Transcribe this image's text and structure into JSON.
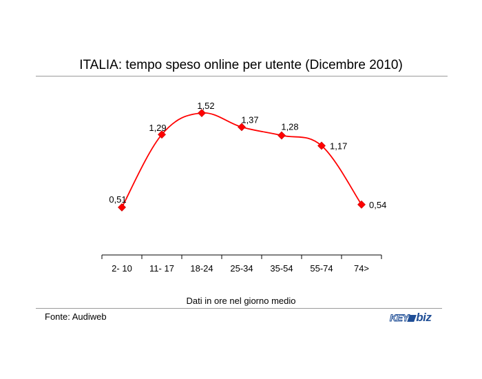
{
  "chart_data": {
    "type": "line",
    "title": "ITALIA: tempo speso online per utente (Dicembre 2010)",
    "xlabel": "Dati in ore nel giorno medio",
    "ylabel": "",
    "categories": [
      "2- 10",
      "11- 17",
      "18-24",
      "25-34",
      "35-54",
      "55-74",
      "74>"
    ],
    "series": [
      {
        "values": [
          0.51,
          1.29,
          1.52,
          1.37,
          1.28,
          1.17,
          0.54
        ],
        "labels": [
          "0,51",
          "1,29",
          "1,52",
          "1,37",
          "1,28",
          "1,17",
          "0,54"
        ],
        "color": "#ff0000",
        "marker": "diamond",
        "smooth": true
      }
    ],
    "ylim": [
      0,
      2.0
    ],
    "grid": false
  },
  "footer": {
    "source": "Fonte: Audiweb",
    "logo_text_key": "KEY",
    "logo_text_biz": "biz"
  },
  "colors": {
    "line": "#ff0000",
    "marker": "#ff0000",
    "marker_stroke": "#c00000",
    "rule": "#9a9a9a",
    "logo": "#1f4e96"
  }
}
